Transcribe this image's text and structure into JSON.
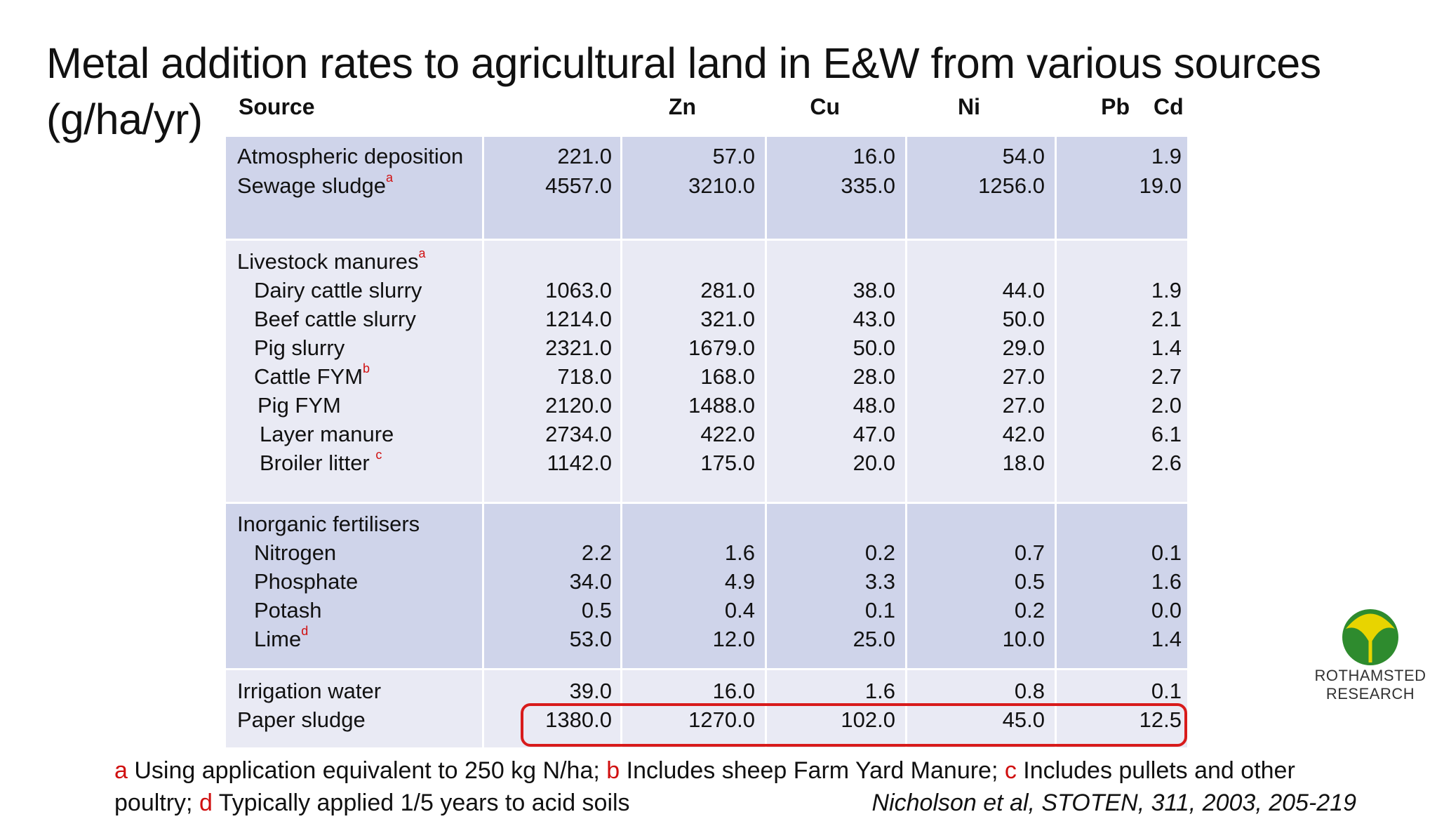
{
  "title_line1": "Metal addition rates to agricultural land in E&W from various sources",
  "title_line2": "(g/ha/yr)",
  "headers": {
    "source": "Source",
    "zn": "Zn",
    "cu": "Cu",
    "ni": "Ni",
    "pb": "Pb",
    "cd": "Cd"
  },
  "rows": {
    "atmos": {
      "label": "Atmospheric deposition",
      "zn": "221.0",
      "cu": "57.0",
      "ni": "16.0",
      "pb": "54.0",
      "cd": "1.9"
    },
    "sewage": {
      "label": "Sewage sludge",
      "sup": "a",
      "zn": "4557.0",
      "cu": "3210.0",
      "ni": "335.0",
      "pb": "1256.0",
      "cd": "19.0"
    },
    "livestock": {
      "label": "Livestock manures",
      "sup": "a"
    },
    "dairy": {
      "label": "Dairy cattle slurry",
      "zn": "1063.0",
      "cu": "281.0",
      "ni": "38.0",
      "pb": "44.0",
      "cd": "1.9"
    },
    "beef": {
      "label": "Beef cattle slurry",
      "zn": "1214.0",
      "cu": "321.0",
      "ni": "43.0",
      "pb": "50.0",
      "cd": "2.1"
    },
    "pigslurry": {
      "label": "Pig slurry",
      "zn": "2321.0",
      "cu": "1679.0",
      "ni": "50.0",
      "pb": "29.0",
      "cd": "1.4"
    },
    "cattlefym": {
      "label": "Cattle FYM",
      "sup": "b",
      "zn": "718.0",
      "cu": "168.0",
      "ni": "28.0",
      "pb": "27.0",
      "cd": "2.7"
    },
    "pigfym": {
      "label": "Pig FYM",
      "zn": "2120.0",
      "cu": "1488.0",
      "ni": "48.0",
      "pb": "27.0",
      "cd": "2.0"
    },
    "layer": {
      "label": "Layer manure",
      "zn": "2734.0",
      "cu": "422.0",
      "ni": "47.0",
      "pb": "42.0",
      "cd": "6.1"
    },
    "broiler": {
      "label": "Broiler litter ",
      "sup": "c",
      "zn": "1142.0",
      "cu": "175.0",
      "ni": "20.0",
      "pb": "18.0",
      "cd": "2.6"
    },
    "inorganic": {
      "label": "Inorganic fertilisers"
    },
    "nitrogen": {
      "label": "Nitrogen",
      "zn": "2.2",
      "cu": "1.6",
      "ni": "0.2",
      "pb": "0.7",
      "cd": "0.1"
    },
    "phosphate": {
      "label": "Phosphate",
      "zn": "34.0",
      "cu": "4.9",
      "ni": "3.3",
      "pb": "0.5",
      "cd": "1.6"
    },
    "potash": {
      "label": "Potash",
      "zn": "0.5",
      "cu": "0.4",
      "ni": "0.1",
      "pb": "0.2",
      "cd": "0.0"
    },
    "lime": {
      "label": "Lime",
      "sup": "d",
      "zn": "53.0",
      "cu": "12.0",
      "ni": "25.0",
      "pb": "10.0",
      "cd": "1.4"
    },
    "irrigation": {
      "label": "Irrigation water",
      "zn": "39.0",
      "cu": "16.0",
      "ni": "1.6",
      "pb": "0.8",
      "cd": "0.1"
    },
    "paper": {
      "label": "Paper sludge",
      "zn": "1380.0",
      "cu": "1270.0",
      "ni": "102.0",
      "pb": "45.0",
      "cd": "12.5"
    }
  },
  "footnote": {
    "a_mark": "a",
    "a_text": " Using application equivalent to 250 kg N/ha; ",
    "b_mark": "b",
    "b_text": " Includes sheep Farm Yard Manure; ",
    "c_mark": "c",
    "c_text": " Includes pullets and other",
    "c_text2": "poultry; ",
    "d_mark": "d",
    "d_text": " Typically applied 1/5 years to acid soils",
    "citation": "Nicholson et al, STOTEN, 311, 2003, 205-219"
  },
  "logo": {
    "line1": "ROTHAMSTED",
    "line2": "RESEARCH"
  },
  "colors": {
    "band_dark": "#cfd4ea",
    "band_light": "#e9eaf4",
    "highlight": "#d81b1b",
    "footnote_marker": "#d01010",
    "logo_green": "#2e8b2e",
    "logo_yellow": "#e8d400"
  }
}
